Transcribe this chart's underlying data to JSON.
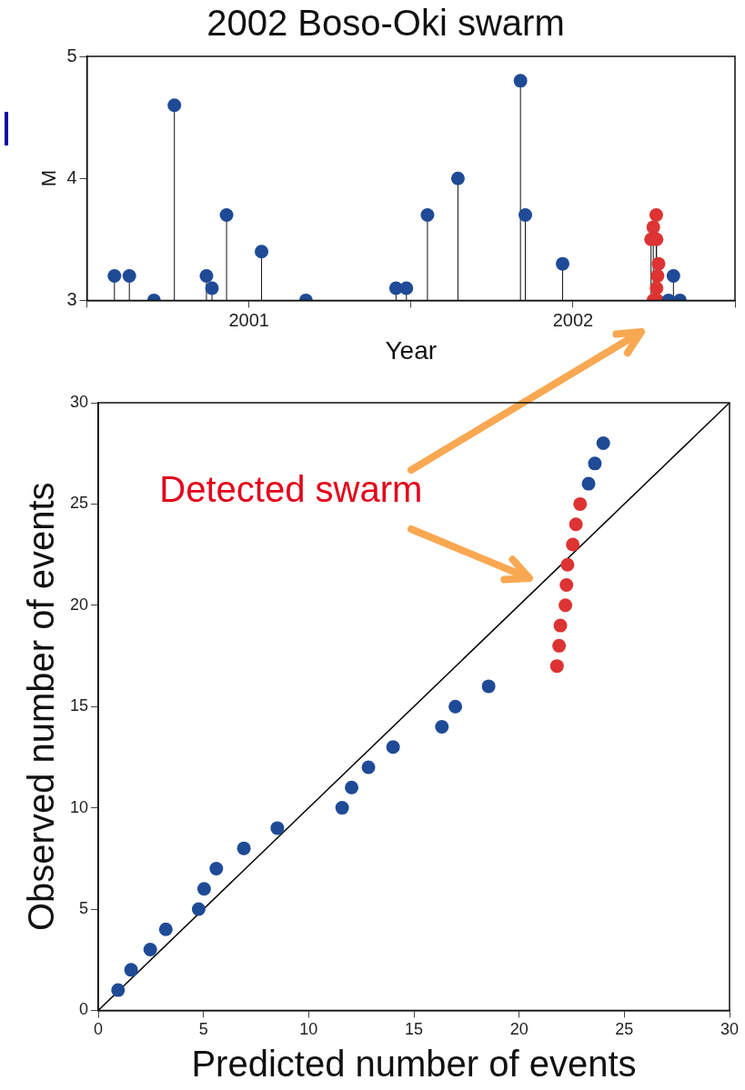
{
  "chart_data": [
    {
      "type": "lollipop",
      "title": "2002 Boso-Oki swarm",
      "xlabel": "Year",
      "ylabel": "M",
      "xlim": [
        2001,
        2003
      ],
      "xticks": [
        {
          "value": 2001,
          "label": null
        },
        {
          "value": 2001.5,
          "label": "2001"
        },
        {
          "value": 2002,
          "label": null
        },
        {
          "value": 2002.5,
          "label": "2002"
        },
        {
          "value": 2003,
          "label": null
        }
      ],
      "ylim": [
        3,
        5
      ],
      "yticks": [
        3,
        4,
        5
      ],
      "grid": false,
      "marker": "circle",
      "series": [
        {
          "color": "#1f4a96",
          "x": [
            2001.085,
            2001.131,
            2001.207,
            2001.27,
            2001.369,
            2001.386,
            2001.431,
            2001.539,
            2001.676,
            2001.954,
            2001.986,
            2002.051,
            2002.145,
            2002.338,
            2002.353,
            2002.468,
            2002.795,
            2002.81,
            2002.83
          ],
          "values": [
            3.2,
            3.2,
            3.0,
            4.6,
            3.2,
            3.1,
            3.7,
            3.4,
            3.0,
            3.1,
            3.1,
            3.7,
            4.0,
            4.8,
            3.7,
            3.3,
            3.0,
            3.2,
            3.0
          ]
        },
        {
          "color": "#dd3333",
          "x": [
            2002.748,
            2002.741,
            2002.757,
            2002.758,
            2002.764,
            2002.761,
            2002.758,
            2002.748,
            2002.76
          ],
          "values": [
            3.6,
            3.5,
            3.7,
            3.5,
            3.3,
            3.2,
            3.1,
            3.0,
            3.0
          ]
        }
      ]
    },
    {
      "type": "scatter",
      "xlabel": "Predicted number of events",
      "ylabel": "Observed number of events",
      "xlim": [
        0,
        30
      ],
      "xticks": [
        0,
        5,
        10,
        15,
        20,
        25,
        30
      ],
      "ylim": [
        0,
        30
      ],
      "yticks": [
        0,
        5,
        10,
        15,
        20,
        25,
        30
      ],
      "grid": false,
      "marker": "circle",
      "annotations": [
        "Detected swarm"
      ],
      "series": [
        {
          "color": "#1f4a96",
          "x": [
            0.94,
            1.56,
            2.47,
            3.21,
            4.77,
            5.03,
            5.61,
            6.92,
            8.51,
            11.59,
            12.04,
            12.84,
            14.01,
            16.33,
            16.97,
            18.55,
            23.3,
            23.6,
            24.0
          ],
          "values": [
            1,
            2,
            3,
            4,
            5,
            6,
            7,
            8,
            9,
            10,
            11,
            12,
            13,
            14,
            15,
            16,
            26,
            27,
            28
          ]
        },
        {
          "color": "#dd3333",
          "x": [
            21.8,
            21.9,
            21.96,
            22.2,
            22.25,
            22.3,
            22.55,
            22.7,
            22.9
          ],
          "values": [
            17,
            18,
            19,
            20,
            21,
            22,
            23,
            24,
            25
          ]
        },
        {
          "type": "line",
          "color": "#000000",
          "marker": "none",
          "line_style": "solid",
          "x": [
            0,
            30
          ],
          "values": [
            0,
            30
          ]
        }
      ]
    }
  ]
}
